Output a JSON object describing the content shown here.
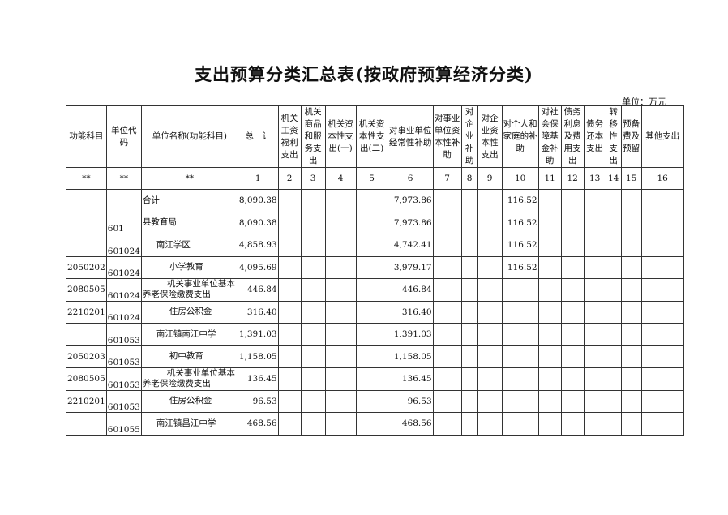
{
  "title": "支出预算分类汇总表(按政府预算经济分类)",
  "unit": "单位：万元",
  "headers": [
    "功能科目",
    "单位代码",
    "单位名称(功能科目)",
    "总　计",
    "机关工资福利支出",
    "机关商品和服务支出",
    "机关资本性支出(一)",
    "机关资本性支出(二)",
    "对事业单位经常性补助",
    "对事业单位资本性补助",
    "对企业补助",
    "对企业资本性支出",
    "对个人和家庭的补助",
    "对社会保障基金补助",
    "债务利息及费用支出",
    "债务还本支出",
    "转移性支出",
    "预备费及预留",
    "其他支出"
  ],
  "index_row": [
    "**",
    "**",
    "**",
    "1",
    "2",
    "3",
    "4",
    "5",
    "6",
    "7",
    "8",
    "9",
    "10",
    "11",
    "12",
    "13",
    "14",
    "15",
    "16"
  ],
  "rows": [
    {
      "func": "",
      "code": "",
      "name": "合计",
      "indent": 0,
      "total": "8,090.38",
      "c6": "7,973.86",
      "c10": "116.52"
    },
    {
      "func": "",
      "code": "601",
      "name": "县教育局",
      "indent": 0,
      "total": "8,090.38",
      "c6": "7,973.86",
      "c10": "116.52"
    },
    {
      "func": "",
      "code": "601024",
      "name": "南江学区",
      "indent": 1,
      "total": "4,858.93",
      "c6": "4,742.41",
      "c10": "116.52"
    },
    {
      "func": "2050202",
      "code": "601024",
      "name": "小学教育",
      "indent": 2,
      "total": "4,095.69",
      "c6": "3,979.17",
      "c10": "116.52"
    },
    {
      "func": "2080505",
      "code": "601024",
      "name": "机关事业单位基本养老保险缴费支出",
      "indent": 2,
      "total": "446.84",
      "c6": "446.84",
      "c10": ""
    },
    {
      "func": "2210201",
      "code": "601024",
      "name": "住房公积金",
      "indent": 2,
      "total": "316.40",
      "c6": "316.40",
      "c10": ""
    },
    {
      "func": "",
      "code": "601053",
      "name": "南江镇南江中学",
      "indent": 1,
      "total": "1,391.03",
      "c6": "1,391.03",
      "c10": ""
    },
    {
      "func": "2050203",
      "code": "601053",
      "name": "初中教育",
      "indent": 2,
      "total": "1,158.05",
      "c6": "1,158.05",
      "c10": ""
    },
    {
      "func": "2080505",
      "code": "601053",
      "name": "机关事业单位基本养老保险缴费支出",
      "indent": 2,
      "total": "136.45",
      "c6": "136.45",
      "c10": ""
    },
    {
      "func": "2210201",
      "code": "601053",
      "name": "住房公积金",
      "indent": 2,
      "total": "96.53",
      "c6": "96.53",
      "c10": ""
    },
    {
      "func": "",
      "code": "601055",
      "name": "南江镇昌江中学",
      "indent": 1,
      "total": "468.56",
      "c6": "468.56",
      "c10": ""
    }
  ]
}
